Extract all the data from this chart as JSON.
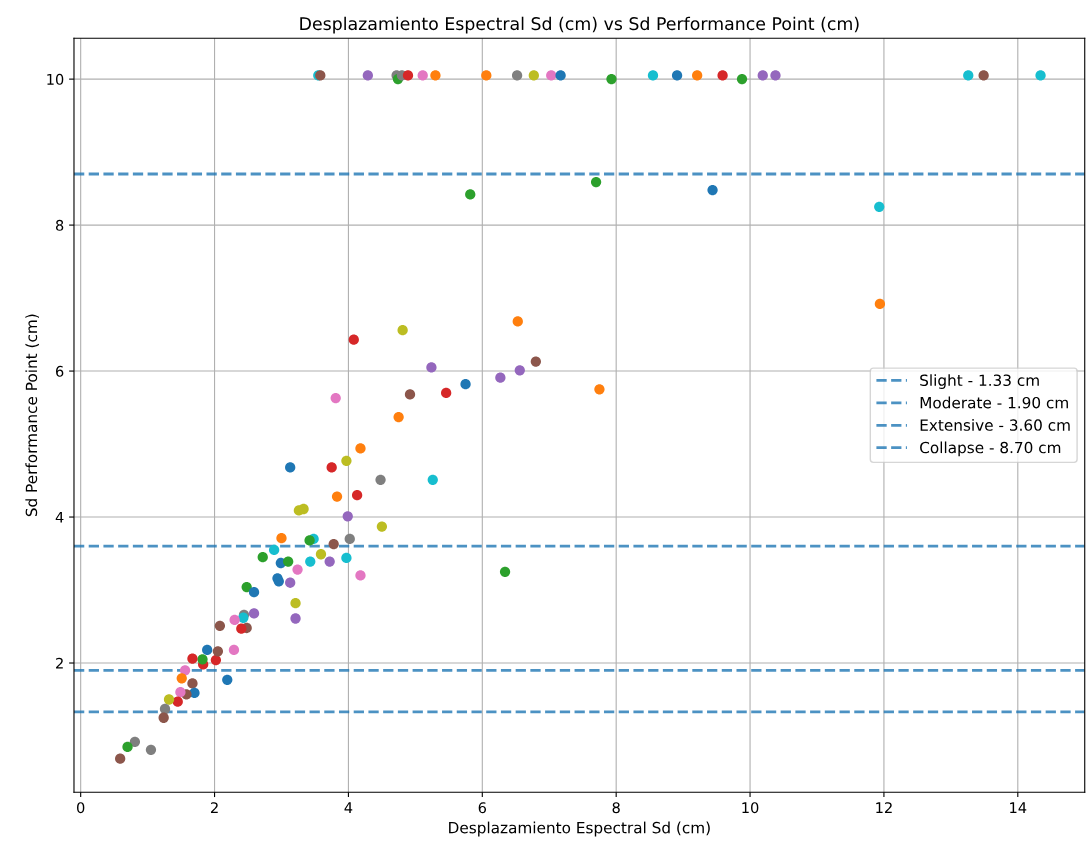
{
  "chart_data": {
    "type": "scatter",
    "title": "Desplazamiento Espectral Sd (cm) vs Sd Performance Point (cm)",
    "xlabel": "Desplazamiento Espectral Sd (cm)",
    "ylabel": "Sd Performance Point (cm)",
    "x": [
      3.55,
      3.58,
      4.29,
      4.72,
      4.74,
      4.8,
      4.89,
      5.11,
      5.3,
      6.06,
      6.52,
      6.77,
      7.03,
      7.17,
      7.93,
      8.55,
      8.91,
      9.21,
      9.59,
      9.88,
      10.19,
      10.38,
      13.26,
      13.49,
      14.34,
      5.82,
      7.7,
      9.44,
      11.93,
      11.94,
      4.08,
      4.81,
      6.53,
      5.24,
      6.8,
      6.56,
      6.27,
      5.75,
      5.46,
      4.92,
      7.75,
      3.81,
      4.75,
      4.18,
      3.97,
      3.13,
      3.75,
      4.48,
      5.26,
      4.13,
      3.83,
      3.26,
      3.33,
      4.5,
      3.99,
      3.78,
      4.02,
      3.48,
      3.42,
      3.0,
      2.89,
      2.72,
      2.99,
      3.1,
      3.43,
      3.59,
      3.72,
      3.97,
      3.24,
      2.94,
      2.96,
      3.13,
      4.18,
      6.34,
      2.48,
      2.59,
      3.21,
      3.21,
      2.59,
      2.44,
      2.43,
      2.3,
      2.48,
      2.02,
      1.83,
      1.82,
      1.67,
      1.89,
      2.05,
      2.29,
      2.08,
      2.4,
      2.19,
      1.56,
      1.51,
      1.67,
      1.7,
      1.58,
      1.49,
      1.45,
      1.32,
      1.26,
      1.24,
      0.81,
      0.7,
      1.05,
      0.59
    ],
    "values": [
      10.05,
      10.05,
      10.05,
      10.05,
      10.0,
      10.05,
      10.05,
      10.05,
      10.05,
      10.05,
      10.05,
      10.05,
      10.05,
      10.05,
      10.0,
      10.05,
      10.05,
      10.05,
      10.05,
      10.0,
      10.05,
      10.05,
      10.05,
      10.05,
      10.05,
      8.42,
      8.59,
      8.48,
      8.25,
      6.92,
      6.43,
      6.56,
      6.68,
      6.05,
      6.13,
      6.01,
      5.91,
      5.82,
      5.7,
      5.68,
      5.75,
      5.63,
      5.37,
      4.94,
      4.77,
      4.68,
      4.68,
      4.51,
      4.51,
      4.3,
      4.28,
      4.09,
      4.11,
      3.87,
      4.01,
      3.63,
      3.7,
      3.7,
      3.68,
      3.71,
      3.55,
      3.45,
      3.37,
      3.39,
      3.39,
      3.49,
      3.39,
      3.44,
      3.28,
      3.16,
      3.12,
      3.1,
      3.2,
      3.25,
      3.04,
      2.97,
      2.82,
      2.61,
      2.68,
      2.66,
      2.62,
      2.59,
      2.48,
      2.04,
      1.98,
      2.05,
      2.06,
      2.18,
      2.16,
      2.18,
      2.51,
      2.47,
      1.77,
      1.9,
      1.79,
      1.72,
      1.59,
      1.57,
      1.6,
      1.47,
      1.5,
      1.37,
      1.25,
      0.92,
      0.85,
      0.81,
      0.69
    ],
    "colors": [
      "#17becf",
      "#8c564b",
      "#9467bd",
      "#7f7f7f",
      "#2ca02c",
      "#7f7f7f",
      "#d62728",
      "#e377c2",
      "#ff7f0e",
      "#ff7f0e",
      "#7f7f7f",
      "#bcbd22",
      "#e377c2",
      "#1f77b4",
      "#2ca02c",
      "#17becf",
      "#1f77b4",
      "#ff7f0e",
      "#d62728",
      "#2ca02c",
      "#9467bd",
      "#9467bd",
      "#17becf",
      "#8c564b",
      "#17becf",
      "#2ca02c",
      "#2ca02c",
      "#1f77b4",
      "#17becf",
      "#ff7f0e",
      "#d62728",
      "#bcbd22",
      "#ff7f0e",
      "#9467bd",
      "#8c564b",
      "#9467bd",
      "#9467bd",
      "#1f77b4",
      "#d62728",
      "#8c564b",
      "#ff7f0e",
      "#e377c2",
      "#ff7f0e",
      "#ff7f0e",
      "#bcbd22",
      "#1f77b4",
      "#d62728",
      "#7f7f7f",
      "#17becf",
      "#d62728",
      "#ff7f0e",
      "#bcbd22",
      "#bcbd22",
      "#bcbd22",
      "#9467bd",
      "#8c564b",
      "#7f7f7f",
      "#17becf",
      "#2ca02c",
      "#ff7f0e",
      "#17becf",
      "#2ca02c",
      "#1f77b4",
      "#2ca02c",
      "#17becf",
      "#bcbd22",
      "#9467bd",
      "#17becf",
      "#e377c2",
      "#1f77b4",
      "#1f77b4",
      "#9467bd",
      "#e377c2",
      "#2ca02c",
      "#2ca02c",
      "#1f77b4",
      "#bcbd22",
      "#9467bd",
      "#9467bd",
      "#7f7f7f",
      "#17becf",
      "#e377c2",
      "#8c564b",
      "#d62728",
      "#d62728",
      "#2ca02c",
      "#d62728",
      "#1f77b4",
      "#8c564b",
      "#e377c2",
      "#8c564b",
      "#d62728",
      "#1f77b4",
      "#e377c2",
      "#ff7f0e",
      "#8c564b",
      "#1f77b4",
      "#8c564b",
      "#e377c2",
      "#d62728",
      "#bcbd22",
      "#7f7f7f",
      "#8c564b",
      "#7f7f7f",
      "#2ca02c",
      "#7f7f7f",
      "#8c564b"
    ],
    "xlim": [
      -0.1,
      15.0
    ],
    "ylim": [
      0.23,
      10.56
    ],
    "xticks": [
      0,
      2,
      4,
      6,
      8,
      10,
      12,
      14
    ],
    "yticks": [
      2,
      4,
      6,
      8,
      10
    ],
    "ref_lines": [
      {
        "axis": "y",
        "value": 1.33,
        "label": "Slight - 1.33 cm",
        "color": "#1f77b4",
        "line_style": "dashed"
      },
      {
        "axis": "y",
        "value": 1.9,
        "label": "Moderate - 1.90 cm",
        "color": "#1f77b4",
        "line_style": "dashed"
      },
      {
        "axis": "y",
        "value": 3.6,
        "label": "Extensive - 3.60 cm",
        "color": "#1f77b4",
        "line_style": "dashed"
      },
      {
        "axis": "y",
        "value": 8.7,
        "label": "Collapse - 8.70 cm",
        "color": "#1f77b4",
        "line_style": "dashed"
      }
    ],
    "grid": true,
    "legend": "center right",
    "marker": "circle"
  }
}
